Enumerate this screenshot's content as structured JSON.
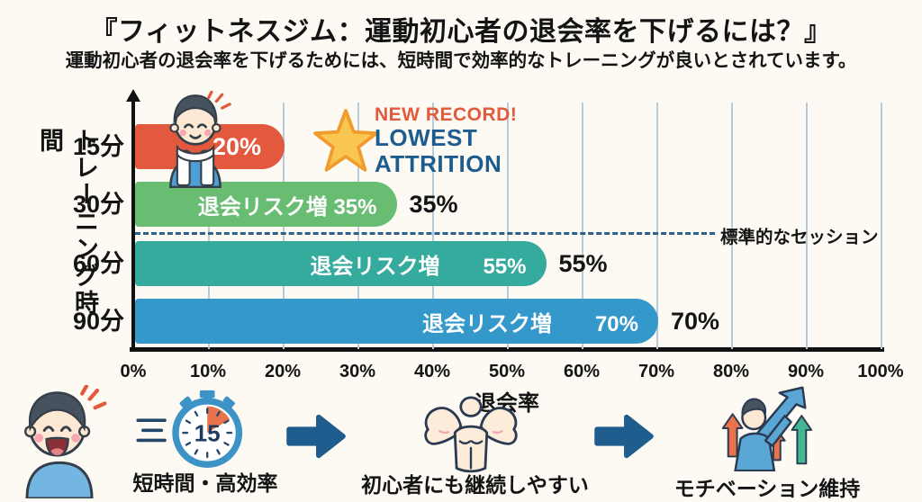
{
  "page": {
    "title": "『フィットネスジム：運動初心者の退会率を下げるには？』",
    "subtitle": "運動初心者の退会率を下げるためには、短時間で効率的なトレーニングが良いとされています。"
  },
  "chart_data": {
    "type": "bar",
    "orientation": "horizontal",
    "title": "",
    "xlabel": "退会率",
    "ylabel": "トレーニング時間",
    "categories": [
      "15分",
      "30分",
      "60分",
      "90分"
    ],
    "values": [
      20,
      35,
      55,
      70
    ],
    "unit": "%",
    "bar_colors": [
      "#e2593d",
      "#68bd72",
      "#35ab9e",
      "#3498cb"
    ],
    "inner_labels": [
      "20%",
      "退会リスク増 35%",
      "退会リスク増　　55%",
      "退会リスク増　　70%"
    ],
    "outer_labels": [
      "",
      "35%",
      "55%",
      "70%"
    ],
    "xlim": [
      0,
      100
    ],
    "x_ticks": [
      "0%",
      "10%",
      "20%",
      "30%",
      "40%",
      "50%",
      "60%",
      "70%",
      "80%",
      "90%",
      "100%"
    ],
    "grid": "vertical",
    "grid_color": "#b6cbdc",
    "reference_line": {
      "style": "dashed",
      "color": "#2e6187",
      "position": "between 30分 and 60分",
      "label": "標準的なセッション"
    },
    "annotations": [
      {
        "text": "NEW RECORD!",
        "color": "#e2593b",
        "target": "15分"
      },
      {
        "text": "LOWEST ATTRITION",
        "color": "#1d5c8e",
        "target": "15分"
      },
      {
        "icon": "star-icon",
        "target": "15分"
      },
      {
        "icon": "trainee-with-towel-icon",
        "target": "15分"
      }
    ]
  },
  "footer": {
    "persona_icon": "happy-beginner-icon",
    "stopwatch_value": "15",
    "arrow_icon": "right-arrow-icon",
    "steps": [
      {
        "icon": "stopwatch-icon",
        "label": "短時間・高効率"
      },
      {
        "icon": "muscle-icon",
        "label": "初心者にも継続しやすい"
      },
      {
        "icon": "motivation-arrows-icon",
        "label": "モチベーション維持"
      }
    ]
  },
  "colors": {
    "background": "#fdfaf4",
    "text": "#141414",
    "accent_orange": "#e2593d",
    "green": "#68bd72",
    "teal": "#35ab9e",
    "blue": "#3498cb",
    "navy": "#1e5d8e",
    "star_yellow": "#f9c74f"
  }
}
